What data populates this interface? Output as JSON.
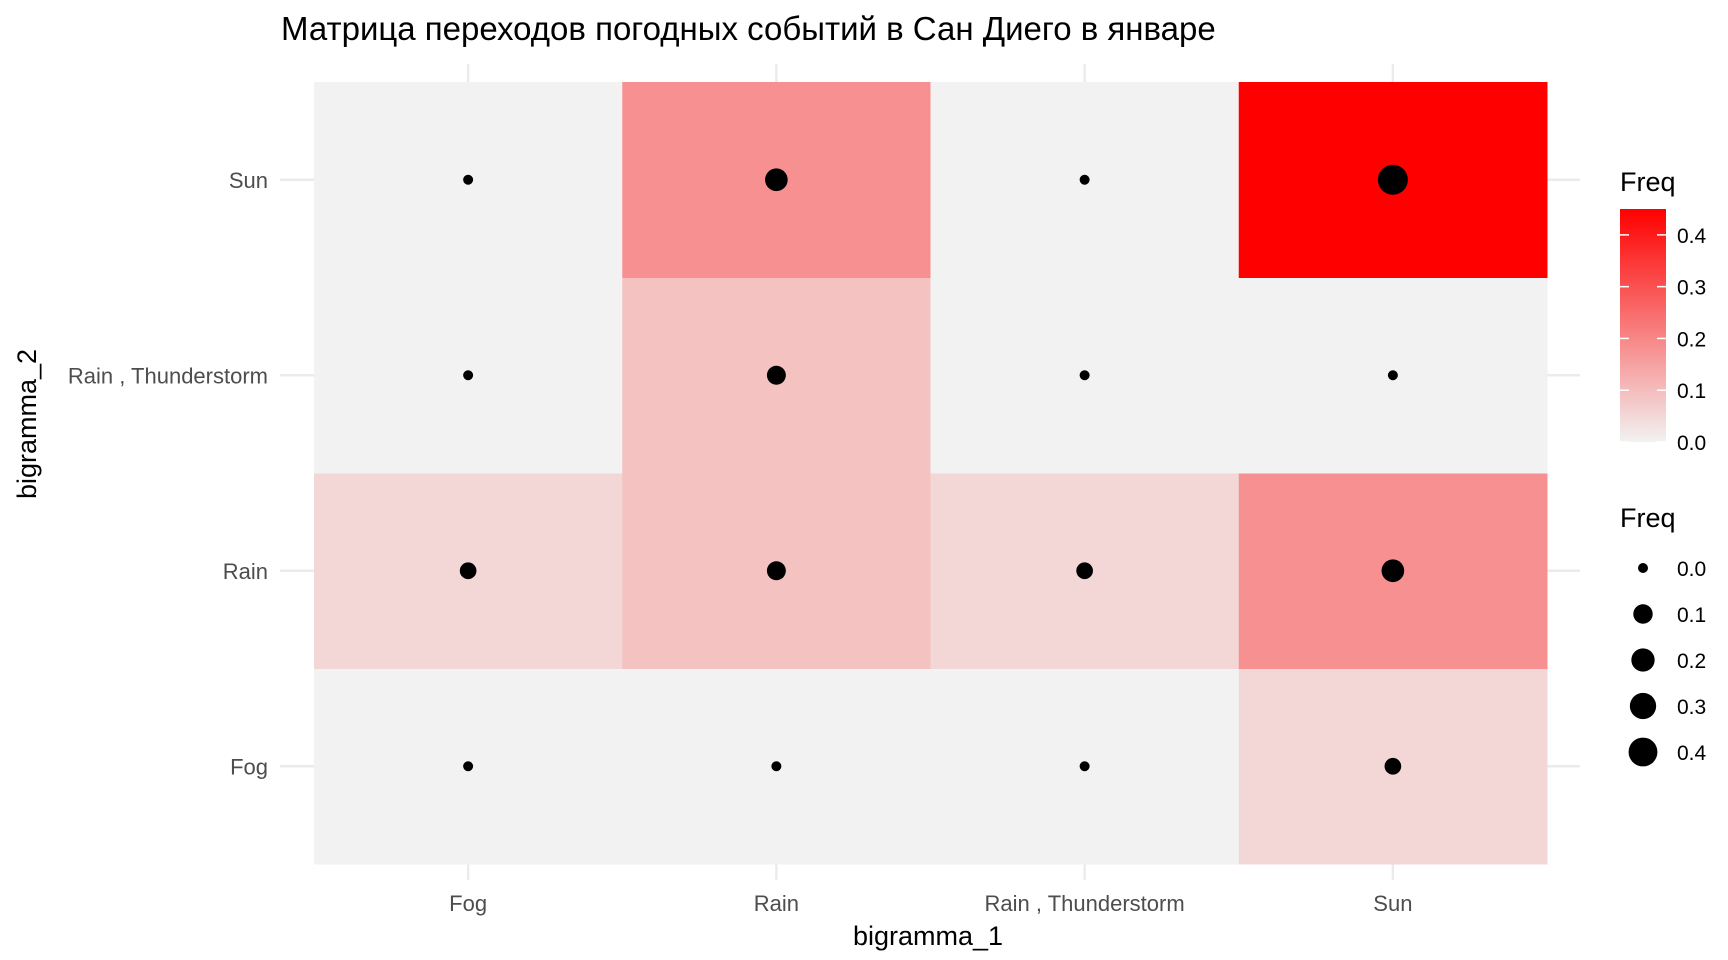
{
  "chart_data": {
    "type": "heatmap",
    "title": "Матрица переходов погодных событий в Сан Диего в январе",
    "xlabel": "bigramma_1",
    "ylabel": "bigramma_2",
    "x_categories": [
      "Fog",
      "Rain",
      "Rain , Thunderstorm",
      "Sun"
    ],
    "y_categories": [
      "Fog",
      "Rain",
      "Rain , Thunderstorm",
      "Sun"
    ],
    "cells": [
      {
        "x": "Fog",
        "y": "Fog",
        "freq": 0.0
      },
      {
        "x": "Fog",
        "y": "Rain",
        "freq": 0.05
      },
      {
        "x": "Fog",
        "y": "Rain , Thunderstorm",
        "freq": 0.0
      },
      {
        "x": "Fog",
        "y": "Sun",
        "freq": 0.0
      },
      {
        "x": "Rain",
        "y": "Fog",
        "freq": 0.0
      },
      {
        "x": "Rain",
        "y": "Rain",
        "freq": 0.09
      },
      {
        "x": "Rain",
        "y": "Rain , Thunderstorm",
        "freq": 0.09
      },
      {
        "x": "Rain",
        "y": "Sun",
        "freq": 0.18
      },
      {
        "x": "Rain , Thunderstorm",
        "y": "Fog",
        "freq": 0.0
      },
      {
        "x": "Rain , Thunderstorm",
        "y": "Rain",
        "freq": 0.05
      },
      {
        "x": "Rain , Thunderstorm",
        "y": "Rain , Thunderstorm",
        "freq": 0.0
      },
      {
        "x": "Rain , Thunderstorm",
        "y": "Sun",
        "freq": 0.0
      },
      {
        "x": "Sun",
        "y": "Fog",
        "freq": 0.05
      },
      {
        "x": "Sun",
        "y": "Rain",
        "freq": 0.18
      },
      {
        "x": "Sun",
        "y": "Rain , Thunderstorm",
        "freq": 0.0
      },
      {
        "x": "Sun",
        "y": "Sun",
        "freq": 0.45
      }
    ],
    "color_scale": {
      "low": "#f2f2f2",
      "high": "#ff0000",
      "limits": [
        0,
        0.45
      ]
    },
    "legend_color": {
      "title": "Freq",
      "breaks": [
        0.0,
        0.1,
        0.2,
        0.3,
        0.4
      ],
      "labels": [
        "0.0",
        "0.1",
        "0.2",
        "0.3",
        "0.4"
      ]
    },
    "legend_size": {
      "title": "Freq",
      "breaks": [
        0.0,
        0.1,
        0.2,
        0.3,
        0.4
      ],
      "labels": [
        "0.0",
        "0.1",
        "0.2",
        "0.3",
        "0.4"
      ]
    },
    "point_color": "#000000",
    "grid": true,
    "legend_position": "right"
  }
}
